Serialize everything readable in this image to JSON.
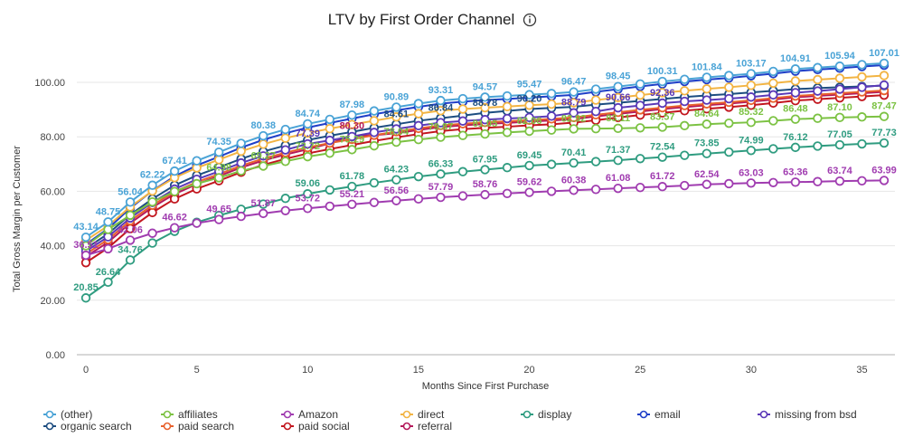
{
  "chart_data": {
    "type": "line",
    "title": "LTV by First Order Channel",
    "title_icon": "info-icon",
    "xlabel": "Months Since First Purchase",
    "ylabel": "Total Gross Margin per Customer",
    "xlim": [
      0,
      36
    ],
    "ylim": [
      0,
      110
    ],
    "xticks": [
      "0",
      "5",
      "10",
      "15",
      "20",
      "25",
      "30",
      "35"
    ],
    "xtick_values": [
      0,
      5,
      10,
      15,
      20,
      25,
      30,
      35
    ],
    "yticks": [
      "0.00",
      "20.00",
      "40.00",
      "60.00",
      "80.00",
      "100.00"
    ],
    "ytick_values": [
      0,
      20,
      40,
      60,
      80,
      100
    ],
    "grid": true,
    "legend_position": "bottom",
    "marker": "hollow-circle",
    "series": [
      {
        "name": "(other)",
        "color": "#4aa3d6",
        "labeled": [
          0,
          1,
          2,
          3,
          4,
          6,
          8,
          10,
          12,
          14,
          16,
          18,
          20,
          22,
          24,
          26,
          28,
          30,
          32,
          34,
          36
        ],
        "values": [
          43.14,
          48.75,
          56.04,
          62.22,
          67.41,
          71.2,
          74.35,
          77.6,
          80.38,
          82.7,
          84.74,
          86.4,
          87.98,
          89.5,
          90.89,
          92.2,
          93.31,
          94.0,
          94.57,
          95.0,
          95.47,
          95.9,
          96.47,
          97.5,
          98.45,
          99.4,
          100.31,
          101.1,
          101.84,
          102.5,
          103.17,
          104.0,
          104.91,
          105.4,
          105.94,
          106.5,
          107.01
        ]
      },
      {
        "name": "affiliates",
        "color": "#7cc243",
        "labeled": [
          6,
          8,
          10,
          12,
          14,
          16,
          18,
          20,
          22,
          24,
          26,
          28,
          30,
          32,
          34,
          36
        ],
        "values": [
          40.0,
          46.0,
          51.2,
          56.1,
          59.9,
          62.8,
          64.98,
          67.5,
          69.27,
          71.0,
          72.72,
          74.0,
          75.29,
          76.7,
          78.04,
          79.0,
          79.87,
          80.5,
          81.05,
          81.6,
          82.06,
          82.5,
          82.92,
          83.0,
          83.11,
          83.3,
          83.57,
          84.1,
          84.64,
          85.0,
          85.32,
          85.9,
          86.48,
          86.8,
          87.1,
          87.3,
          87.47
        ]
      },
      {
        "name": "Amazon",
        "color": "#a03cb0",
        "labeled": [
          0,
          2,
          4,
          6,
          8,
          10,
          12,
          14,
          16,
          18,
          20,
          22,
          24,
          26,
          28,
          30,
          32,
          34,
          36
        ],
        "values": [
          36.51,
          38.9,
          42.06,
          44.6,
          46.62,
          48.3,
          49.65,
          50.8,
          51.87,
          52.9,
          53.72,
          54.5,
          55.21,
          55.9,
          56.56,
          57.2,
          57.79,
          58.3,
          58.76,
          59.2,
          59.62,
          60.0,
          60.38,
          60.7,
          61.08,
          61.4,
          61.72,
          62.1,
          62.54,
          62.8,
          63.03,
          63.2,
          63.36,
          63.55,
          63.74,
          63.85,
          63.99
        ]
      },
      {
        "name": "direct",
        "color": "#f2b443",
        "labeled": [],
        "values": [
          42.0,
          47.3,
          54.3,
          60.1,
          65.0,
          68.6,
          71.6,
          74.7,
          77.3,
          79.5,
          81.4,
          83.0,
          84.5,
          85.9,
          87.3,
          88.5,
          89.6,
          90.2,
          90.7,
          91.1,
          91.6,
          92.0,
          92.5,
          93.5,
          94.4,
          95.3,
          96.2,
          96.9,
          97.6,
          98.2,
          98.9,
          99.7,
          100.5,
          101.0,
          101.5,
          102.0,
          102.5
        ]
      },
      {
        "name": "display",
        "color": "#2f9c80",
        "labeled": [
          0,
          1,
          2,
          10,
          12,
          14,
          16,
          18,
          20,
          22,
          24,
          26,
          28,
          30,
          32,
          34,
          36
        ],
        "values": [
          20.85,
          26.64,
          34.76,
          41.0,
          45.3,
          48.6,
          51.1,
          53.4,
          55.3,
          57.4,
          59.06,
          60.5,
          61.78,
          63.1,
          64.23,
          65.4,
          66.33,
          67.2,
          67.95,
          68.7,
          69.45,
          69.9,
          70.41,
          70.9,
          71.37,
          72.0,
          72.54,
          73.2,
          73.85,
          74.4,
          74.99,
          75.6,
          76.12,
          76.6,
          77.05,
          77.4,
          77.73
        ]
      },
      {
        "name": "email",
        "color": "#1f3fc8",
        "labeled": [],
        "values": [
          40.5,
          46.3,
          53.8,
          60.2,
          65.5,
          69.5,
          72.7,
          76.0,
          78.9,
          81.3,
          83.4,
          85.1,
          86.7,
          88.3,
          89.7,
          91.0,
          92.2,
          92.9,
          93.5,
          93.9,
          94.4,
          94.9,
          95.4,
          96.5,
          97.5,
          98.5,
          99.4,
          100.3,
          101.0,
          101.6,
          102.4,
          103.2,
          104.1,
          104.7,
          105.2,
          105.8,
          106.3
        ]
      },
      {
        "name": "missing from bsd",
        "color": "#5b39b8",
        "labeled": [
          10,
          22,
          24,
          26
        ],
        "values": [
          38.0,
          43.3,
          50.2,
          55.9,
          60.8,
          64.4,
          67.3,
          70.4,
          73.0,
          75.2,
          77.39,
          78.7,
          80.1,
          81.6,
          82.9,
          84.1,
          85.2,
          85.8,
          86.3,
          86.7,
          87.1,
          87.6,
          88.79,
          89.3,
          90.66,
          91.5,
          92.36,
          93.0,
          93.5,
          94.0,
          94.6,
          95.4,
          96.2,
          96.8,
          97.5,
          98.2,
          99.0
        ]
      },
      {
        "name": "organic search",
        "color": "#1d4d80",
        "labeled": [
          14,
          16,
          18,
          20
        ],
        "values": [
          39.0,
          44.4,
          51.4,
          57.2,
          62.2,
          65.8,
          68.8,
          71.9,
          74.6,
          76.8,
          78.8,
          80.4,
          81.8,
          83.3,
          84.61,
          85.9,
          86.84,
          87.8,
          88.78,
          89.5,
          90.2,
          90.6,
          91.0,
          91.8,
          92.5,
          93.2,
          93.9,
          94.6,
          95.2,
          95.7,
          96.3,
          96.9,
          97.5,
          97.9,
          98.2,
          98.5,
          98.8
        ]
      },
      {
        "name": "paid search",
        "color": "#e8612d",
        "labeled": [],
        "values": [
          37.0,
          42.3,
          49.2,
          54.9,
          59.8,
          63.4,
          66.3,
          69.4,
          72.0,
          74.2,
          76.1,
          77.7,
          79.1,
          80.6,
          81.9,
          83.1,
          84.2,
          84.8,
          85.3,
          85.7,
          86.1,
          86.6,
          87.1,
          88.1,
          89.0,
          89.9,
          90.7,
          91.5,
          92.1,
          92.7,
          93.4,
          94.2,
          95.0,
          95.5,
          96.0,
          96.5,
          97.0
        ]
      },
      {
        "name": "paid social",
        "color": "#c2161e",
        "labeled": [],
        "values": [
          33.8,
          39.2,
          46.3,
          52.2,
          57.2,
          60.9,
          63.9,
          67.0,
          69.7,
          71.9,
          73.9,
          75.5,
          77.0,
          78.5,
          79.8,
          81.0,
          82.1,
          82.8,
          83.3,
          83.7,
          84.2,
          84.6,
          85.2,
          86.1,
          87.1,
          88.0,
          88.8,
          89.6,
          90.3,
          90.9,
          91.6,
          92.4,
          93.3,
          93.8,
          94.3,
          94.8,
          95.3
        ]
      },
      {
        "name": "referral",
        "color": "#b41a5b",
        "labeled": [
          12
        ],
        "values": [
          36.0,
          41.3,
          48.3,
          54.1,
          59.0,
          62.6,
          65.6,
          68.7,
          71.3,
          73.5,
          75.4,
          77.6,
          80.3,
          80.6,
          81.3,
          82.5,
          83.6,
          84.2,
          84.7,
          85.1,
          85.6,
          86.0,
          86.5,
          87.5,
          88.4,
          89.3,
          90.2,
          90.9,
          91.6,
          92.2,
          92.9,
          93.7,
          94.5,
          95.0,
          95.5,
          96.0,
          96.5
        ]
      }
    ],
    "legend_order": [
      "(other)",
      "affiliates",
      "Amazon",
      "direct",
      "display",
      "email",
      "missing from bsd",
      "organic search",
      "paid search",
      "paid social",
      "referral"
    ]
  }
}
